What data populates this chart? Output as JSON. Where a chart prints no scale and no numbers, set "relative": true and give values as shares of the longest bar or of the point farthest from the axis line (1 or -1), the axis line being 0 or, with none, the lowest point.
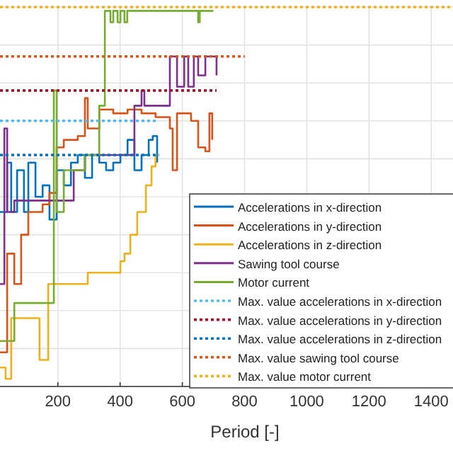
{
  "chart_data": {
    "type": "step",
    "xlabel": "Period [-]",
    "relative": true,
    "xlim": [
      14,
      1470
    ],
    "xticks": [
      200,
      400,
      600,
      800,
      1000,
      1200,
      1400
    ],
    "grid": true,
    "legend": "bottom right",
    "line_style": "solid",
    "series": [
      {
        "name": "Accelerations in x-direction",
        "color": "#0072bd",
        "x": [
          14,
          37,
          50,
          69,
          91,
          105,
          128,
          151,
          173,
          196,
          219,
          242,
          264,
          287,
          310,
          333,
          355,
          378,
          401,
          424,
          446,
          469,
          492,
          505,
          519
        ],
        "values": [
          0.46,
          0.59,
          0.46,
          0.57,
          0.46,
          0.59,
          0.5,
          0.53,
          0.44,
          0.57,
          0.53,
          0.59,
          0.61,
          0.55,
          0.61,
          0.59,
          0.57,
          0.59,
          0.61,
          0.65,
          0.57,
          0.61,
          0.65,
          0.66,
          0.59
        ]
      },
      {
        "name": "Accelerations in y-direction",
        "color": "#d95319",
        "x": [
          14,
          37,
          60,
          82,
          105,
          151,
          173,
          196,
          219,
          264,
          287,
          296,
          333,
          378,
          424,
          469,
          514,
          560,
          569,
          583,
          628,
          651,
          674,
          687,
          696
        ],
        "values": [
          0.09,
          0.35,
          0.27,
          0.4,
          0.46,
          0.48,
          0.51,
          0.63,
          0.65,
          0.66,
          0.76,
          0.68,
          0.73,
          0.72,
          0.73,
          0.72,
          0.71,
          0.68,
          0.57,
          0.72,
          0.7,
          0.63,
          0.62,
          0.72,
          0.65
        ]
      },
      {
        "name": "Accelerations in z-direction",
        "color": "#edb120",
        "x": [
          14,
          32,
          50,
          128,
          141,
          160,
          169,
          287,
          296,
          378,
          401,
          414,
          433,
          455,
          483,
          501,
          514
        ],
        "values": [
          0.05,
          0.02,
          0.18,
          0.18,
          0.07,
          0.07,
          0.27,
          0.27,
          0.3,
          0.3,
          0.33,
          0.35,
          0.4,
          0.46,
          0.53,
          0.58,
          0.61
        ]
      },
      {
        "name": "Sawing tool course",
        "color": "#7e2f8e",
        "x": [
          14,
          28,
          37,
          60,
          242,
          251,
          287,
          446,
          469,
          478,
          514,
          560,
          583,
          606,
          619,
          637,
          651,
          674,
          696,
          710
        ],
        "values": [
          0.27,
          0.68,
          0.46,
          0.49,
          0.49,
          0.57,
          0.61,
          0.74,
          0.78,
          0.74,
          0.74,
          0.87,
          0.79,
          0.87,
          0.79,
          0.87,
          0.82,
          0.87,
          0.87,
          0.82
        ]
      },
      {
        "name": "Motor current",
        "color": "#77ac30",
        "x": [
          14,
          60,
          173,
          187,
          196,
          219,
          287,
          333,
          351,
          369,
          378,
          392,
          401,
          414,
          423,
          646,
          651,
          656,
          700
        ],
        "values": [
          0.12,
          0.22,
          0.22,
          0.78,
          0.46,
          0.57,
          0.61,
          0.74,
          0.99,
          0.96,
          0.99,
          0.96,
          0.99,
          0.96,
          0.99,
          0.99,
          0.96,
          0.99,
          0.99
        ]
      },
      {
        "name": "Max. value accelerations in x-direction",
        "color": "#4dbeee",
        "line_style": "dotted",
        "x": [
          14,
          515
        ],
        "values": [
          0.7,
          0.7
        ]
      },
      {
        "name": "Max. value accelerations in y-direction",
        "color": "#a2142f",
        "line_style": "dotted",
        "x": [
          14,
          710
        ],
        "values": [
          0.78,
          0.78
        ]
      },
      {
        "name": "Max. value accelerations in z-direction",
        "color": "#0072bd",
        "line_style": "dotted",
        "x": [
          14,
          525
        ],
        "values": [
          0.61,
          0.61
        ]
      },
      {
        "name": "Max. value sawing tool course",
        "color": "#d95319",
        "line_style": "dotted",
        "x": [
          14,
          800
        ],
        "values": [
          0.87,
          0.87
        ]
      },
      {
        "name": "Max. value motor current",
        "color": "#edb120",
        "line_style": "dotted",
        "x": [
          14,
          1470
        ],
        "values": [
          1,
          1
        ]
      }
    ]
  }
}
